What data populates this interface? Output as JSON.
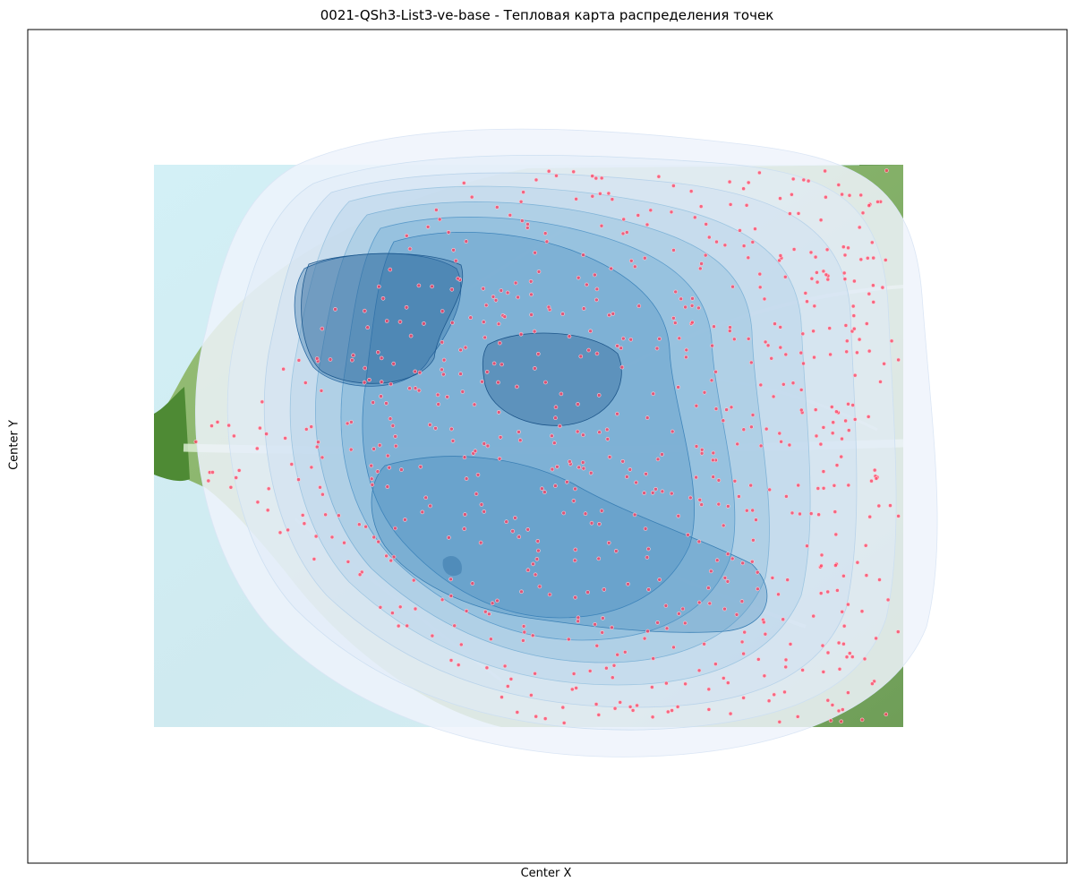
{
  "chart_data": {
    "type": "heatmap",
    "title": "0021-QSh3-List3-ve-base - Тепловая карта распределения точек",
    "xlabel": "Center X",
    "ylabel": "Center Y",
    "ticks": "none",
    "grid": false,
    "legend": "none",
    "background_image": "leaf-micrograph",
    "colormap": "Blues",
    "point_color": "#ff3b5c",
    "kde_levels": 10,
    "kde_peaks": [
      "upper-left",
      "upper-center",
      "lower-center"
    ]
  }
}
